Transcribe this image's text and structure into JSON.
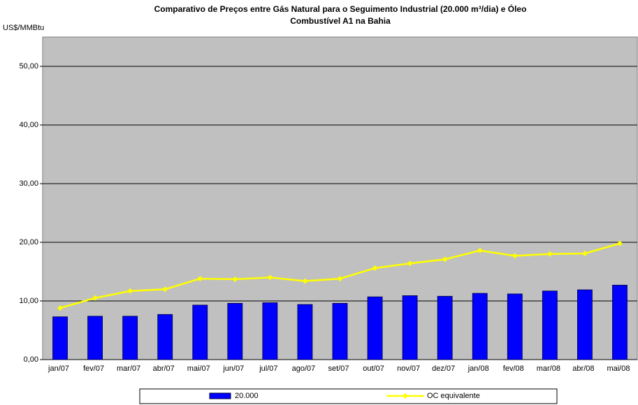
{
  "chart_data": {
    "type": "bar_line",
    "title": [
      "Comparativo de Preços entre Gás Natural para o Seguimento Industrial (20.000 m³/dia) e Óleo",
      "Combustível A1 na Bahia"
    ],
    "y_label": "US$/MMBtu",
    "categories": [
      "jan/07",
      "fev/07",
      "mar/07",
      "abr/07",
      "mai/07",
      "jun/07",
      "jul/07",
      "ago/07",
      "set/07",
      "out/07",
      "nov/07",
      "dez/07",
      "jan/08",
      "fev/08",
      "mar/08",
      "abr/08",
      "mai/08"
    ],
    "series": [
      {
        "name": "20.000",
        "type": "bar",
        "color": "#0000ff",
        "values": [
          7.3,
          7.4,
          7.4,
          7.7,
          9.3,
          9.6,
          9.7,
          9.4,
          9.6,
          10.7,
          10.9,
          10.8,
          11.3,
          11.2,
          11.7,
          11.9,
          12.7
        ]
      },
      {
        "name": "OC equivalente",
        "type": "line",
        "color": "#ffff00",
        "values": [
          8.8,
          10.5,
          11.7,
          12.0,
          13.8,
          13.7,
          14.0,
          13.4,
          13.8,
          15.6,
          16.4,
          17.1,
          18.6,
          17.7,
          18.0,
          18.1,
          19.8
        ]
      }
    ],
    "ylim": [
      0,
      55
    ],
    "yticks": [
      {
        "value": 0,
        "label": "0,00"
      },
      {
        "value": 10,
        "label": "10,00"
      },
      {
        "value": 20,
        "label": "20,00"
      },
      {
        "value": 30,
        "label": "30,00"
      },
      {
        "value": 40,
        "label": "40,00"
      },
      {
        "value": 50,
        "label": "50,00"
      }
    ],
    "grid": true,
    "legend": "bottom"
  }
}
